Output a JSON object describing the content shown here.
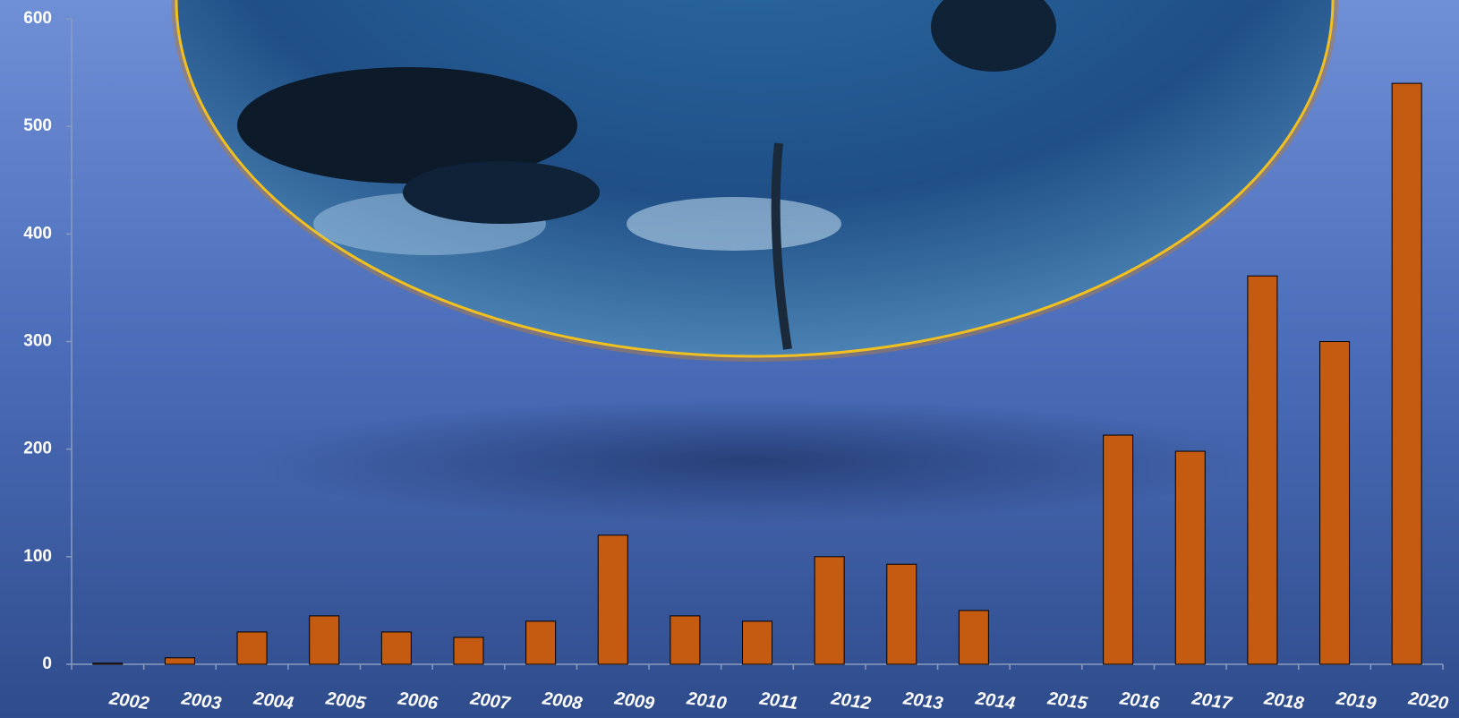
{
  "chart_data": {
    "type": "bar",
    "categories": [
      "2002",
      "2003",
      "2004",
      "2005",
      "2006",
      "2007",
      "2008",
      "2009",
      "2010",
      "2011",
      "2012",
      "2013",
      "2014",
      "2015",
      "2016",
      "2017",
      "2018",
      "2019",
      "2020"
    ],
    "values": [
      1,
      6,
      30,
      45,
      30,
      25,
      40,
      120,
      45,
      40,
      100,
      93,
      50,
      0,
      213,
      198,
      361,
      300,
      540
    ],
    "color": "#c55a11",
    "ylim": [
      0,
      600
    ],
    "yticks": [
      0,
      100,
      200,
      300,
      400,
      500,
      600
    ],
    "grid": false
  }
}
